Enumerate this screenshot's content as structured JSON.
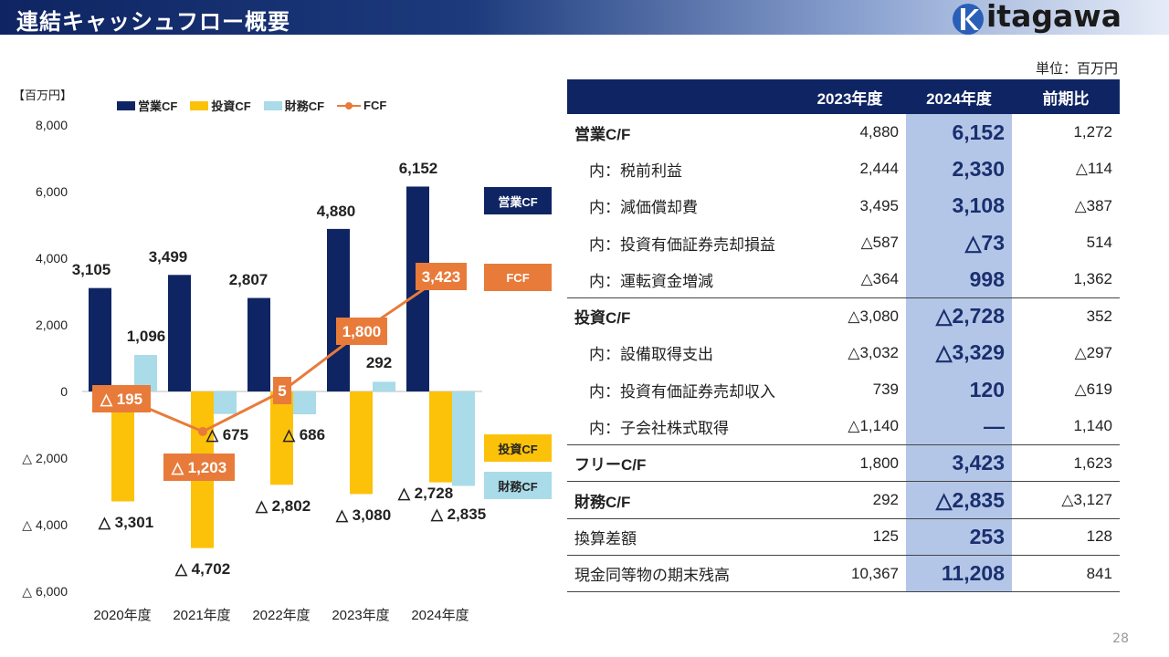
{
  "header": {
    "title": "連結キャッシュフロー概要",
    "logo_text": "itagawa",
    "logo_initial": "K"
  },
  "chart_data": {
    "type": "bar",
    "ylabel": "【百万円】",
    "ylim": [
      -6000,
      8000
    ],
    "yticks": [
      8000,
      6000,
      4000,
      2000,
      0,
      -2000,
      -4000,
      -6000
    ],
    "ytick_labels": [
      "8,000",
      "6,000",
      "4,000",
      "2,000",
      "0",
      "△ 2,000",
      "△ 4,000",
      "△ 6,000"
    ],
    "categories": [
      "2020年度",
      "2021年度",
      "2022年度",
      "2023年度",
      "2024年度"
    ],
    "series": [
      {
        "name": "営業CF",
        "kind": "bar",
        "color": "#0f2563",
        "values": [
          3105,
          3499,
          2807,
          4880,
          6152
        ],
        "labels": [
          "3,105",
          "3,499",
          "2,807",
          "4,880",
          "6,152"
        ]
      },
      {
        "name": "投資CF",
        "kind": "bar",
        "color": "#fcc20a",
        "values": [
          -3301,
          -4702,
          -2802,
          -3080,
          -2728
        ],
        "labels": [
          "△ 3,301",
          "△ 4,702",
          "△ 2,802",
          "△ 3,080",
          "△ 2,728"
        ]
      },
      {
        "name": "財務CF",
        "kind": "bar",
        "color": "#a9dbe8",
        "values": [
          1096,
          -675,
          -686,
          292,
          -2835
        ],
        "labels": [
          "1,096",
          "△ 675",
          "△ 686",
          "292",
          "△ 2,835"
        ]
      },
      {
        "name": "FCF",
        "kind": "line",
        "color": "#e87b3a",
        "values": [
          -195,
          -1203,
          5,
          1800,
          3423
        ],
        "labels": [
          "△ 195",
          "△ 1,203",
          "5",
          "1,800",
          "3,423"
        ]
      }
    ],
    "side_labels": [
      {
        "text": "営業CF",
        "bg": "#0f2563",
        "fg": "#ffffff"
      },
      {
        "text": "FCF",
        "bg": "#e87b3a",
        "fg": "#ffffff"
      },
      {
        "text": "投資CF",
        "bg": "#fcc20a",
        "fg": "#222222"
      },
      {
        "text": "財務CF",
        "bg": "#a9dbe8",
        "fg": "#222222"
      }
    ]
  },
  "table": {
    "unit": "単位：百万円",
    "headers": [
      "",
      "2023年度",
      "2024年度",
      "前期比"
    ],
    "rows": [
      {
        "label": "営業C/F",
        "v2023": "4,880",
        "v2024": "6,152",
        "diff": "1,272",
        "style": "main"
      },
      {
        "label": "内：税前利益",
        "v2023": "2,444",
        "v2024": "2,330",
        "diff": "△114",
        "style": "sub"
      },
      {
        "label": "内：減価償却費",
        "v2023": "3,495",
        "v2024": "3,108",
        "diff": "△387",
        "style": "sub"
      },
      {
        "label": "内：投資有価証券売却損益",
        "v2023": "△587",
        "v2024": "△73",
        "diff": "514",
        "style": "sub"
      },
      {
        "label": "内：運転資金増減",
        "v2023": "△364",
        "v2024": "998",
        "diff": "1,362",
        "style": "sub"
      },
      {
        "label": "投資C/F",
        "v2023": "△3,080",
        "v2024": "△2,728",
        "diff": "352",
        "style": "main"
      },
      {
        "label": "内：設備取得支出",
        "v2023": "△3,032",
        "v2024": "△3,329",
        "diff": "△297",
        "style": "sub"
      },
      {
        "label": "内：投資有価証券売却収入",
        "v2023": "739",
        "v2024": "120",
        "diff": "△619",
        "style": "sub"
      },
      {
        "label": "内：子会社株式取得",
        "v2023": "△1,140",
        "v2024": "―",
        "diff": "1,140",
        "style": "sub"
      },
      {
        "label": "フリーC/F",
        "v2023": "1,800",
        "v2024": "3,423",
        "diff": "1,623",
        "style": "main"
      },
      {
        "label": "財務C/F",
        "v2023": "292",
        "v2024": "△2,835",
        "diff": "△3,127",
        "style": "main"
      },
      {
        "label": "換算差額",
        "v2023": "125",
        "v2024": "253",
        "diff": "128",
        "style": "plain"
      },
      {
        "label": "現金同等物の期末残高",
        "v2023": "10,367",
        "v2024": "11,208",
        "diff": "841",
        "style": "plain"
      }
    ]
  },
  "page_number": "28"
}
